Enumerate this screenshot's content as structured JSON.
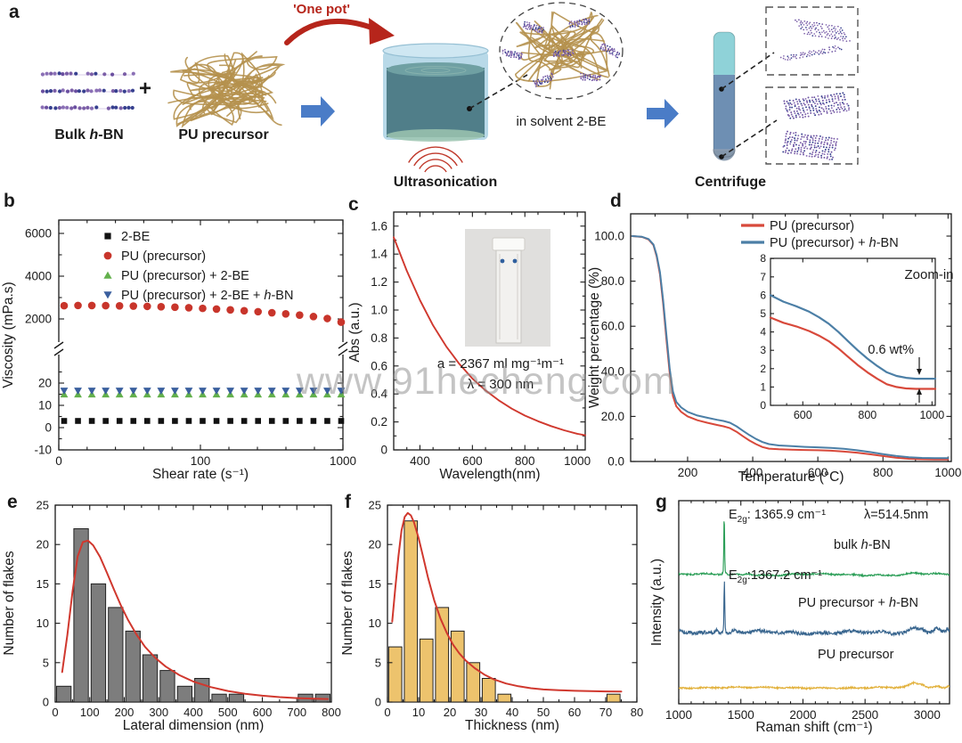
{
  "watermark": "www.91hecheng.com",
  "panel_letters": {
    "a": "a",
    "b": "b",
    "c": "c",
    "d": "d",
    "e": "e",
    "f": "f",
    "g": "g"
  },
  "panel_a": {
    "one_pot": "'One pot'",
    "plus": "+",
    "bulk_pre": "Bulk ",
    "h": "h",
    "bn_post": "-BN",
    "pu_precursor": "PU precursor",
    "ultrasonication": "Ultrasonication",
    "in_solvent": "in solvent 2-BE",
    "centrifuge": "Centrifuge"
  },
  "chart_data": [
    {
      "id": "b",
      "type": "scatter",
      "xlabel": "Shear rate (s⁻¹)",
      "ylabel": "Viscosity (mPa.s)",
      "x_ticks": [
        "0",
        "100",
        "1000"
      ],
      "y_ticks_upper": [
        "6000",
        "4000",
        "2000"
      ],
      "y_ticks_lower": [
        "20",
        "10",
        "0",
        "-10"
      ],
      "axis_break": true,
      "legend": [
        {
          "marker": "square",
          "color": "#111111",
          "label": "2-BE"
        },
        {
          "marker": "circle",
          "color": "#c8352b",
          "label": "PU (precursor)"
        },
        {
          "marker": "triangle-up",
          "color": "#63b04c",
          "label": "PU (precursor) + 2-BE"
        },
        {
          "marker": "triangle-down",
          "color": "#3a5f9e",
          "label_pre": "PU (precursor) + 2-BE + ",
          "label_it": "h",
          "label_post": "-BN"
        }
      ],
      "series": [
        {
          "name": "PU (precursor)",
          "marker": "circle",
          "color": "#c8352b",
          "values": [
            2620,
            2630,
            2626,
            2621,
            2613,
            2602,
            2588,
            2570,
            2549,
            2524,
            2495,
            2462,
            2425,
            2384,
            2339,
            2290,
            2237,
            2180,
            2110,
            2020,
            1850
          ]
        },
        {
          "name": "PU (precursor) + 2-BE",
          "marker": "triangle-up",
          "color": "#63b04c",
          "constant": 15.0,
          "count": 21
        },
        {
          "name": "PU (precursor) + 2-BE + h-BN",
          "marker": "triangle-down",
          "color": "#3a5f9e",
          "constant": 16.5,
          "count": 21
        },
        {
          "name": "2-BE",
          "marker": "square",
          "color": "#111111",
          "constant": 3.0,
          "count": 21
        }
      ]
    },
    {
      "id": "c",
      "type": "line",
      "xlabel": "Wavelength(nm)",
      "ylabel": "Abs (a.u.)",
      "x_ticks": [
        400,
        600,
        800,
        1000
      ],
      "y_ticks": [
        "1.6",
        "1.4",
        "1.2",
        "1.0",
        "0.8",
        "0.6",
        "0.4",
        "0.2",
        "0"
      ],
      "x_range": [
        300,
        1030
      ],
      "y_range": [
        0,
        1.7
      ],
      "annotation_line1": "a = 2367 ml mg⁻¹m⁻¹",
      "annotation_line2": "λ = 300 nm",
      "curve_color": "#d0382e",
      "points": [
        [
          300,
          1.52
        ],
        [
          350,
          1.28
        ],
        [
          400,
          1.07
        ],
        [
          450,
          0.89
        ],
        [
          500,
          0.74
        ],
        [
          550,
          0.615
        ],
        [
          600,
          0.51
        ],
        [
          650,
          0.425
        ],
        [
          700,
          0.355
        ],
        [
          750,
          0.295
        ],
        [
          800,
          0.245
        ],
        [
          850,
          0.205
        ],
        [
          900,
          0.17
        ],
        [
          950,
          0.14
        ],
        [
          1000,
          0.115
        ],
        [
          1030,
          0.105
        ]
      ]
    },
    {
      "id": "d",
      "type": "line",
      "xlabel": "Temperature (°C)",
      "ylabel": "Weight percentage (%)",
      "x_ticks": [
        200,
        400,
        600,
        800,
        1000
      ],
      "y_ticks": [
        "100.0",
        "80.0",
        "60.0",
        "40.0",
        "20.0",
        "0.0"
      ],
      "x_range": [
        25,
        1010
      ],
      "y_range": [
        0,
        108
      ],
      "legend": [
        {
          "color": "#d8493b",
          "label": "PU (precursor)"
        },
        {
          "color": "#4c7fa6",
          "label_pre": "PU (precursor) + ",
          "label_it": "h",
          "label_post": "-BN"
        }
      ],
      "series": [
        {
          "name": "PU (precursor)",
          "color": "#d8493b",
          "points": [
            [
              30,
              100
            ],
            [
              60,
              99.6
            ],
            [
              80,
              98.5
            ],
            [
              95,
              96
            ],
            [
              105,
              91
            ],
            [
              115,
              83
            ],
            [
              125,
              70
            ],
            [
              135,
              54
            ],
            [
              145,
              39
            ],
            [
              155,
              29
            ],
            [
              165,
              24.5
            ],
            [
              180,
              22
            ],
            [
              200,
              20
            ],
            [
              230,
              18.3
            ],
            [
              260,
              17.2
            ],
            [
              290,
              16.2
            ],
            [
              310,
              15.6
            ],
            [
              330,
              14.8
            ],
            [
              350,
              13.2
            ],
            [
              370,
              11.2
            ],
            [
              390,
              9.3
            ],
            [
              410,
              7.7
            ],
            [
              430,
              6.4
            ],
            [
              450,
              5.7
            ],
            [
              480,
              5.4
            ],
            [
              520,
              5.2
            ],
            [
              560,
              5.1
            ],
            [
              600,
              5.0
            ],
            [
              640,
              4.8
            ],
            [
              680,
              4.4
            ],
            [
              720,
              3.9
            ],
            [
              760,
              3.2
            ],
            [
              800,
              2.4
            ],
            [
              840,
              1.7
            ],
            [
              880,
              1.2
            ],
            [
              920,
              1.0
            ],
            [
              960,
              0.92
            ],
            [
              1000,
              0.9
            ]
          ]
        },
        {
          "name": "PU (precursor) + h-BN",
          "color": "#4c7fa6",
          "points": [
            [
              30,
              100
            ],
            [
              60,
              99.7
            ],
            [
              80,
              98.7
            ],
            [
              95,
              96.3
            ],
            [
              105,
              91.6
            ],
            [
              115,
              84
            ],
            [
              125,
              71.5
            ],
            [
              135,
              56
            ],
            [
              145,
              41
            ],
            [
              155,
              31
            ],
            [
              165,
              26.5
            ],
            [
              180,
              24
            ],
            [
              200,
              22
            ],
            [
              230,
              20.4
            ],
            [
              260,
              19.4
            ],
            [
              290,
              18.5
            ],
            [
              310,
              18
            ],
            [
              330,
              17.2
            ],
            [
              350,
              15.6
            ],
            [
              370,
              13.6
            ],
            [
              390,
              11.7
            ],
            [
              410,
              10
            ],
            [
              430,
              8.6
            ],
            [
              450,
              7.7
            ],
            [
              480,
              7.1
            ],
            [
              520,
              6.8
            ],
            [
              560,
              6.5
            ],
            [
              600,
              6.3
            ],
            [
              640,
              6.0
            ],
            [
              680,
              5.6
            ],
            [
              720,
              5.0
            ],
            [
              760,
              4.2
            ],
            [
              800,
              3.3
            ],
            [
              840,
              2.5
            ],
            [
              880,
              1.9
            ],
            [
              920,
              1.6
            ],
            [
              960,
              1.5
            ],
            [
              1000,
              1.45
            ]
          ]
        }
      ],
      "inset": {
        "title": "Zoom-in",
        "annotation": "0.6 wt%",
        "x_ticks": [
          600,
          800,
          1000
        ],
        "y_ticks": [
          "0",
          "1",
          "2",
          "3",
          "4",
          "5",
          "6",
          "7",
          "8"
        ],
        "x_range": [
          500,
          1010
        ],
        "y_range": [
          0,
          8
        ],
        "series": [
          {
            "color": "#4c7fa6",
            "points": [
              [
                500,
                6.0
              ],
              [
                540,
                5.65
              ],
              [
                580,
                5.4
              ],
              [
                620,
                5.1
              ],
              [
                650,
                4.8
              ],
              [
                680,
                4.45
              ],
              [
                710,
                4.0
              ],
              [
                740,
                3.5
              ],
              [
                770,
                3.0
              ],
              [
                800,
                2.55
              ],
              [
                830,
                2.15
              ],
              [
                860,
                1.8
              ],
              [
                890,
                1.6
              ],
              [
                920,
                1.5
              ],
              [
                950,
                1.45
              ],
              [
                1010,
                1.45
              ]
            ]
          },
          {
            "color": "#d8493b",
            "points": [
              [
                500,
                4.78
              ],
              [
                540,
                4.5
              ],
              [
                580,
                4.3
              ],
              [
                620,
                4.05
              ],
              [
                650,
                3.8
              ],
              [
                680,
                3.5
              ],
              [
                710,
                3.1
              ],
              [
                740,
                2.65
              ],
              [
                770,
                2.2
              ],
              [
                800,
                1.8
              ],
              [
                830,
                1.45
              ],
              [
                860,
                1.15
              ],
              [
                890,
                1.0
              ],
              [
                920,
                0.92
              ],
              [
                950,
                0.9
              ],
              [
                1010,
                0.9
              ]
            ]
          }
        ]
      }
    },
    {
      "id": "e",
      "type": "bar",
      "xlabel": "Lateral dimension (nm)",
      "ylabel": "Number of flakes",
      "x_ticks": [
        0,
        100,
        200,
        300,
        400,
        500,
        600,
        700,
        800
      ],
      "y_ticks": [
        "0",
        "5",
        "10",
        "15",
        "20",
        "25"
      ],
      "bin_width": 50,
      "x_range": [
        0,
        800
      ],
      "y_range": [
        0,
        25
      ],
      "bar_color": "#7d7d7d",
      "values": [
        2,
        22,
        15,
        12,
        9,
        6,
        4,
        2,
        3,
        1,
        1,
        0,
        0,
        0,
        1,
        1
      ],
      "fit_color": "#d0382e",
      "fit_points": [
        [
          20,
          3.8
        ],
        [
          35,
          8.5
        ],
        [
          50,
          14
        ],
        [
          65,
          18.5
        ],
        [
          80,
          20.3
        ],
        [
          95,
          20.5
        ],
        [
          110,
          19.9
        ],
        [
          130,
          18.4
        ],
        [
          150,
          16.4
        ],
        [
          170,
          14.3
        ],
        [
          190,
          12.3
        ],
        [
          210,
          10.5
        ],
        [
          235,
          8.6
        ],
        [
          260,
          7.0
        ],
        [
          290,
          5.6
        ],
        [
          320,
          4.5
        ],
        [
          360,
          3.4
        ],
        [
          400,
          2.6
        ],
        [
          450,
          1.9
        ],
        [
          500,
          1.4
        ],
        [
          550,
          1.05
        ],
        [
          600,
          0.8
        ],
        [
          650,
          0.62
        ],
        [
          700,
          0.5
        ],
        [
          750,
          0.42
        ],
        [
          790,
          0.38
        ]
      ]
    },
    {
      "id": "f",
      "type": "bar",
      "xlabel": "Thickness (nm)",
      "ylabel": "Number of flakes",
      "x_ticks": [
        0,
        10,
        20,
        30,
        40,
        50,
        60,
        70,
        80
      ],
      "y_ticks": [
        "0",
        "5",
        "10",
        "15",
        "20",
        "25"
      ],
      "bin_width": 5,
      "x_range": [
        0,
        80
      ],
      "y_range": [
        0,
        25
      ],
      "bar_color": "#edc36d",
      "values": [
        7,
        23,
        8,
        12,
        9,
        5,
        3,
        1,
        0,
        0,
        0,
        0,
        0,
        0,
        1
      ],
      "fit_color": "#d0382e",
      "fit_points": [
        [
          1.5,
          10.2
        ],
        [
          2.5,
          14.5
        ],
        [
          3.5,
          18.5
        ],
        [
          4.5,
          21.8
        ],
        [
          5.5,
          23.5
        ],
        [
          6.5,
          24
        ],
        [
          7.5,
          23.7
        ],
        [
          8.5,
          22.8
        ],
        [
          10,
          20.8
        ],
        [
          11.5,
          18.3
        ],
        [
          13,
          15.8
        ],
        [
          15,
          12.9
        ],
        [
          17,
          10.6
        ],
        [
          19,
          8.8
        ],
        [
          21,
          7.3
        ],
        [
          23,
          6.2
        ],
        [
          25,
          5.3
        ],
        [
          28,
          4.3
        ],
        [
          31,
          3.5
        ],
        [
          34,
          2.9
        ],
        [
          38,
          2.35
        ],
        [
          42,
          2.0
        ],
        [
          46,
          1.75
        ],
        [
          50,
          1.6
        ],
        [
          55,
          1.5
        ],
        [
          60,
          1.42
        ],
        [
          65,
          1.38
        ],
        [
          70,
          1.35
        ],
        [
          75,
          1.33
        ]
      ]
    },
    {
      "id": "g",
      "type": "line",
      "xlabel": "Raman shift (cm⁻¹)",
      "ylabel": "Intensity (a.u.)",
      "x_ticks": [
        1000,
        1500,
        2000,
        2500,
        3000
      ],
      "x_range": [
        1000,
        3180
      ],
      "labels": {
        "lambda": "λ=514.5nm",
        "peak1": {
          "pre": "E",
          "sub": "2g",
          "post": ": 1365.9 cm⁻¹"
        },
        "peak2": {
          "pre": "E",
          "sub": "2g",
          "post": ":1367.2 cm⁻¹"
        },
        "trace1": {
          "pre": "bulk ",
          "it": "h",
          "post": "-BN"
        },
        "trace2": {
          "pre": "PU precursor + ",
          "it": "h",
          "post": "-BN"
        },
        "trace3": {
          "pre": "PU precursor",
          "it": "",
          "post": ""
        }
      },
      "traces": [
        {
          "name": "bulk h-BN",
          "color": "#2b9e57",
          "peak_center": 1365.9
        },
        {
          "name": "PU precursor + h-BN",
          "color": "#38658e",
          "peak_center": 1367.2
        },
        {
          "name": "PU precursor",
          "color": "#e2b13c",
          "peak_center": null
        }
      ]
    }
  ]
}
